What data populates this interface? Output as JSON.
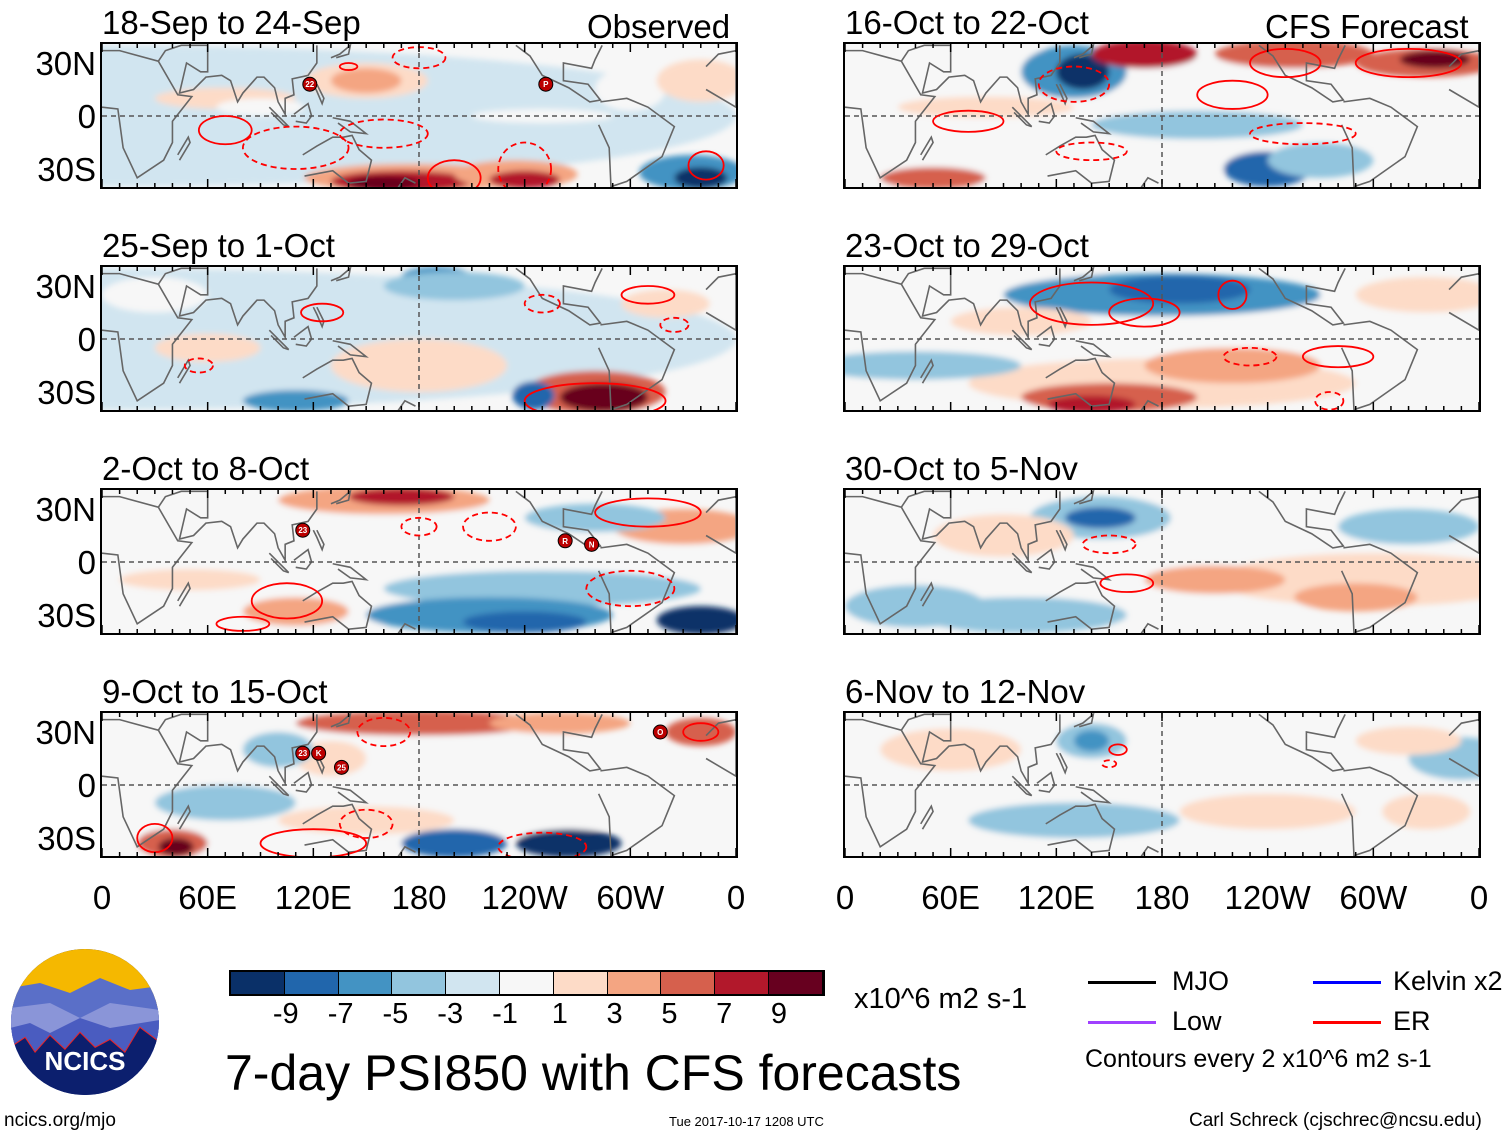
{
  "title": "7-day PSI850 with CFS forecasts",
  "header": {
    "observed_label": "Observed",
    "forecast_label": "CFS Forecast"
  },
  "chart_data": {
    "type": "heatmap",
    "title": "7-day PSI850 with CFS forecasts",
    "panels": [
      {
        "title": "18-Sep to 24-Sep",
        "group": "Observed",
        "storms": [
          "22",
          "P"
        ]
      },
      {
        "title": "25-Sep to 1-Oct",
        "group": "Observed",
        "storms": []
      },
      {
        "title": "2-Oct to 8-Oct",
        "group": "Observed",
        "storms": [
          "23",
          "R",
          "N"
        ]
      },
      {
        "title": "9-Oct to 15-Oct",
        "group": "Observed",
        "storms": [
          "23",
          "K",
          "25",
          "O"
        ]
      },
      {
        "title": "16-Oct to 22-Oct",
        "group": "CFS Forecast",
        "storms": []
      },
      {
        "title": "23-Oct to 29-Oct",
        "group": "CFS Forecast",
        "storms": []
      },
      {
        "title": "30-Oct to 5-Nov",
        "group": "CFS Forecast",
        "storms": []
      },
      {
        "title": "6-Nov to 12-Nov",
        "group": "CFS Forecast",
        "storms": []
      }
    ],
    "y_ticks": [
      "30N",
      "0",
      "30S"
    ],
    "x_ticks": [
      "0",
      "60E",
      "120E",
      "180",
      "120W",
      "60W",
      "0"
    ],
    "colorbar": {
      "levels": [
        "-9",
        "-7",
        "-5",
        "-3",
        "-1",
        "1",
        "3",
        "5",
        "7",
        "9"
      ],
      "colors": [
        "#0a3068",
        "#2166ac",
        "#4393c3",
        "#92c5de",
        "#d1e5f0",
        "#f7f7f7",
        "#fddbc7",
        "#f4a582",
        "#d6604d",
        "#b2182b",
        "#67001f"
      ],
      "units": "x10^6 m2 s-1"
    },
    "legend": [
      {
        "label": "MJO",
        "color": "#000000"
      },
      {
        "label": "Kelvin x2",
        "color": "#0000ff"
      },
      {
        "label": "Low",
        "color": "#a040ff"
      },
      {
        "label": "ER",
        "color": "#ff0000"
      }
    ],
    "contour_note": "Contours every 2 x10^6 m2 s-1"
  },
  "footer": {
    "logo_text": "NCICS",
    "url": "ncics.org/mjo",
    "timestamp": "Tue 2017-10-17 1208 UTC",
    "author": "Carl Schreck (cjschrec@ncsu.edu)"
  }
}
